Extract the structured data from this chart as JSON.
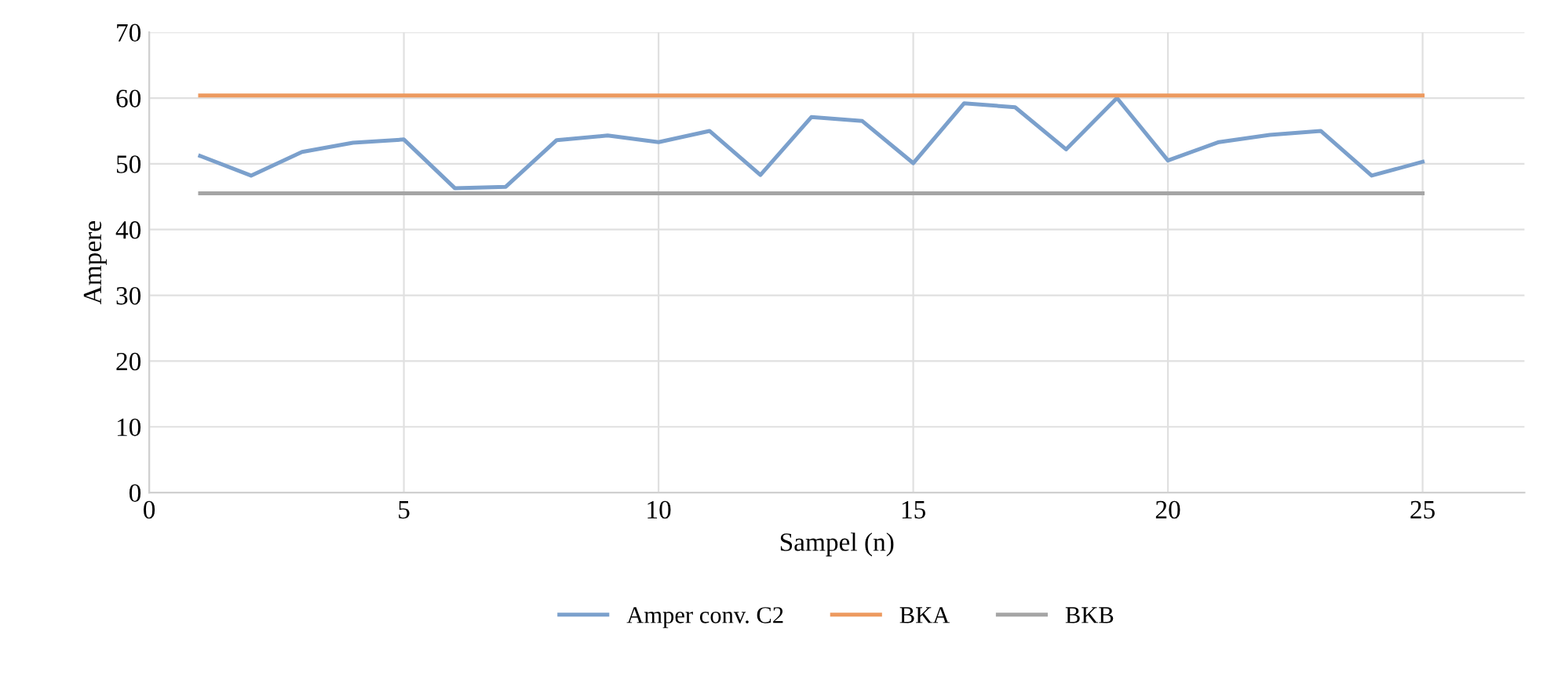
{
  "chart_data": {
    "type": "line",
    "xlabel": "Sampel (n)",
    "ylabel": "Ampere",
    "x": [
      1,
      2,
      3,
      4,
      5,
      6,
      7,
      8,
      9,
      10,
      11,
      12,
      13,
      14,
      15,
      16,
      17,
      18,
      19,
      20,
      21,
      22,
      23,
      24,
      25
    ],
    "series": [
      {
        "name": "Amper conv. C2",
        "color": "#7ba0cc",
        "values": [
          51.2,
          48.2,
          51.8,
          53.2,
          53.7,
          46.3,
          46.5,
          53.6,
          54.3,
          53.3,
          55.0,
          48.3,
          57.1,
          56.5,
          50.1,
          59.2,
          58.6,
          52.2,
          60.0,
          50.5,
          53.3,
          54.4,
          55.0,
          48.2,
          50.3
        ]
      },
      {
        "name": "BKA",
        "color": "#ed9a5f",
        "values": [
          60.4,
          60.4,
          60.4,
          60.4,
          60.4,
          60.4,
          60.4,
          60.4,
          60.4,
          60.4,
          60.4,
          60.4,
          60.4,
          60.4,
          60.4,
          60.4,
          60.4,
          60.4,
          60.4,
          60.4,
          60.4,
          60.4,
          60.4,
          60.4,
          60.4
        ]
      },
      {
        "name": "BKB",
        "color": "#a5a5a5",
        "values": [
          45.5,
          45.5,
          45.5,
          45.5,
          45.5,
          45.5,
          45.5,
          45.5,
          45.5,
          45.5,
          45.5,
          45.5,
          45.5,
          45.5,
          45.5,
          45.5,
          45.5,
          45.5,
          45.5,
          45.5,
          45.5,
          45.5,
          45.5,
          45.5,
          45.5
        ]
      }
    ],
    "xlim": [
      0,
      27
    ],
    "xticks": [
      0,
      5,
      10,
      15,
      20,
      25
    ],
    "ylim": [
      0,
      70
    ],
    "yticks": [
      0,
      10,
      20,
      30,
      40,
      50,
      60,
      70
    ],
    "grid": true,
    "legend": "bottom",
    "marker": "none",
    "line_style": "solid"
  }
}
